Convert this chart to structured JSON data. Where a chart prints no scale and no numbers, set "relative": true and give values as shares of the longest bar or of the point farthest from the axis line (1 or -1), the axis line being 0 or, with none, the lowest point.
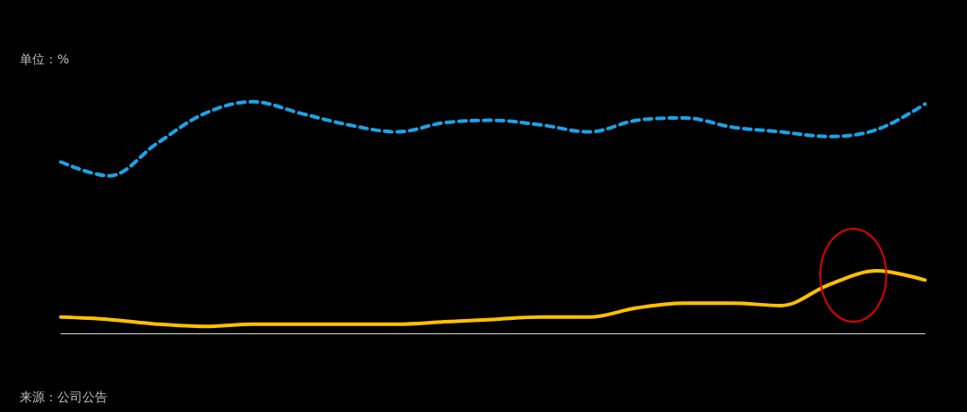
{
  "chart_data": {
    "type": "line",
    "relative": true,
    "ylabel": "单位：%",
    "annotations": [
      "来源：公司公告"
    ],
    "categories": [
      null,
      null,
      null,
      null,
      null,
      null,
      null,
      null,
      null,
      null,
      null,
      null,
      null,
      null,
      null,
      null,
      null,
      null,
      null
    ],
    "series": [
      {
        "color": "#1aa3e8",
        "line_style": "dashed",
        "values": [
          0.74,
          0.68,
          0.82,
          0.95,
          1,
          0.95,
          0.9,
          0.87,
          0.91,
          0.92,
          0.9,
          0.87,
          0.92,
          0.93,
          0.89,
          0.87,
          0.85,
          0.88,
          0.99
        ]
      },
      {
        "color": "#ffc000",
        "line_style": "solid",
        "values": [
          0.07,
          0.06,
          0.04,
          0.03,
          0.04,
          0.04,
          0.04,
          0.04,
          0.05,
          0.06,
          0.07,
          0.07,
          0.11,
          0.13,
          0.13,
          0.12,
          0.21,
          0.27,
          0.23
        ]
      }
    ],
    "marker": "none",
    "grid": false
  }
}
